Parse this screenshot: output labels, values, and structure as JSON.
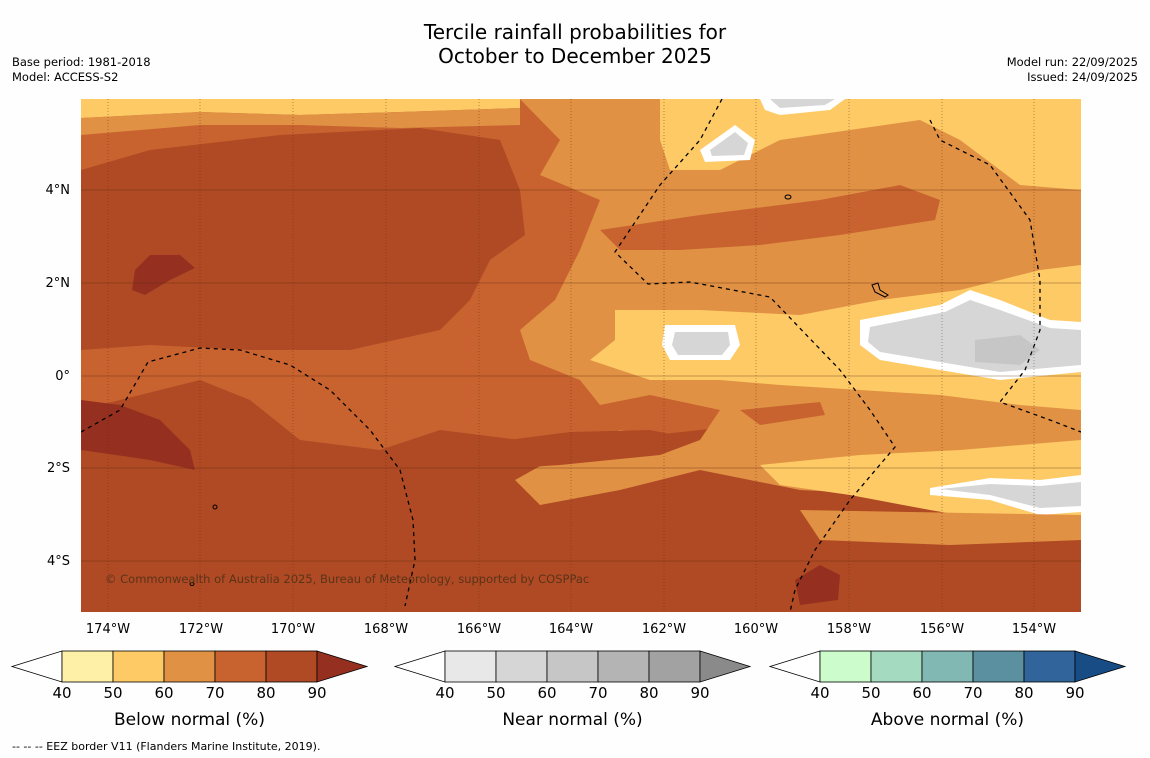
{
  "title": {
    "line1": "Tercile rainfall probabilities for",
    "line2": "October to December 2025"
  },
  "meta": {
    "base_period": "Base period: 1981-2018",
    "model": "Model: ACCESS-S2",
    "model_run": "Model run: 22/09/2025",
    "issued": "Issued: 24/09/2025"
  },
  "map": {
    "lat_labels": [
      "4°N",
      "2°N",
      "0°",
      "2°S",
      "4°S"
    ],
    "lon_labels": [
      "174°W",
      "172°W",
      "170°W",
      "168°W",
      "166°W",
      "164°W",
      "162°W",
      "160°W",
      "158°W",
      "156°W",
      "154°W"
    ],
    "copyright": "© Commonwealth of Australia 2025, Bureau of Meteorology, supported by COSPPac"
  },
  "colorbars": [
    {
      "title": "Below normal (%)",
      "ticks": [
        "40",
        "50",
        "60",
        "70",
        "80",
        "90"
      ],
      "colors": [
        "#fff0a8",
        "#fdca65",
        "#e09144",
        "#c86330",
        "#b04a24",
        "#953020"
      ]
    },
    {
      "title": "Near normal (%)",
      "ticks": [
        "40",
        "50",
        "60",
        "70",
        "80",
        "90"
      ],
      "colors": [
        "#e8e8e8",
        "#d6d6d6",
        "#c6c6c6",
        "#b4b4b4",
        "#a2a2a2",
        "#8a8a8a"
      ]
    },
    {
      "title": "Above normal (%)",
      "ticks": [
        "40",
        "50",
        "60",
        "70",
        "80",
        "90"
      ],
      "colors": [
        "#ccfccc",
        "#a4dac0",
        "#82b8b4",
        "#5a90a0",
        "#30649a",
        "#184c84"
      ]
    }
  ],
  "footnote": "--  --  -- EEZ border V11 (Flanders Marine Institute, 2019)."
}
